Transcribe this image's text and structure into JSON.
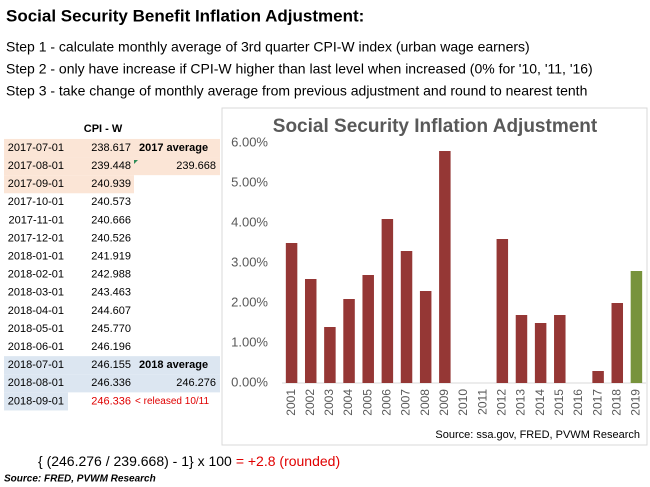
{
  "header": {
    "title": "Social Security Benefit Inflation Adjustment:",
    "steps": [
      "Step 1 - calculate monthly average of 3rd quarter CPI-W index (urban wage earners)",
      "Step 2 - only have increase if CPI-W higher than last level when increased (0% for '10, '11, '16)",
      "Step 3 - take change of monthly average from previous adjustment and round to nearest tenth"
    ]
  },
  "table": {
    "header": "CPI - W",
    "rows": [
      [
        "2017-07-01",
        "238.617"
      ],
      [
        "2017-08-01",
        "239.448"
      ],
      [
        "2017-09-01",
        "240.939"
      ],
      [
        "2017-10-01",
        "240.573"
      ],
      [
        "2017-11-01",
        "240.666"
      ],
      [
        "2017-12-01",
        "240.526"
      ],
      [
        "2018-01-01",
        "241.919"
      ],
      [
        "2018-02-01",
        "242.988"
      ],
      [
        "2018-03-01",
        "243.463"
      ],
      [
        "2018-04-01",
        "244.607"
      ],
      [
        "2018-05-01",
        "245.770"
      ],
      [
        "2018-06-01",
        "246.196"
      ],
      [
        "2018-07-01",
        "246.155"
      ],
      [
        "2018-08-01",
        "246.336"
      ],
      [
        "2018-09-01",
        "246.336"
      ]
    ],
    "average_2017": {
      "label": "2017 average",
      "value": "239.668"
    },
    "average_2018": {
      "label": "2018 average",
      "value": "246.276"
    },
    "release_note": "< released 10/11"
  },
  "formula": {
    "expression": "{ (246.276 / 239.668) - 1} x 100",
    "result": "= +2.8 (rounded)"
  },
  "footer": {
    "source": "Source:  FRED, PVWM Research"
  },
  "chart_data": {
    "type": "bar",
    "title": "Social Security Inflation Adjustment",
    "source": "Source:  ssa.gov, FRED, PVWM Research",
    "categories": [
      "2001",
      "2002",
      "2003",
      "2004",
      "2005",
      "2006",
      "2007",
      "2008",
      "2009",
      "2010",
      "2011",
      "2012",
      "2013",
      "2014",
      "2015",
      "2016",
      "2017",
      "2018",
      "2019"
    ],
    "values": [
      3.5,
      2.6,
      1.4,
      2.1,
      2.7,
      4.1,
      3.3,
      2.3,
      5.8,
      0,
      0,
      3.6,
      1.7,
      1.5,
      1.7,
      0,
      0.3,
      2.0,
      2.8
    ],
    "colors": [
      "#953735",
      "#953735",
      "#953735",
      "#953735",
      "#953735",
      "#953735",
      "#953735",
      "#953735",
      "#953735",
      "#953735",
      "#953735",
      "#953735",
      "#953735",
      "#953735",
      "#953735",
      "#953735",
      "#953735",
      "#953735",
      "#77933c"
    ],
    "ylim": [
      0,
      6
    ],
    "yticks": [
      {
        "value": 0,
        "label": "0.00%"
      },
      {
        "value": 1,
        "label": "1.00%"
      },
      {
        "value": 2,
        "label": "2.00%"
      },
      {
        "value": 3,
        "label": "3.00%"
      },
      {
        "value": 4,
        "label": "4.00%"
      },
      {
        "value": 5,
        "label": "5.00%"
      },
      {
        "value": 6,
        "label": "6.00%"
      }
    ],
    "grid": false
  }
}
